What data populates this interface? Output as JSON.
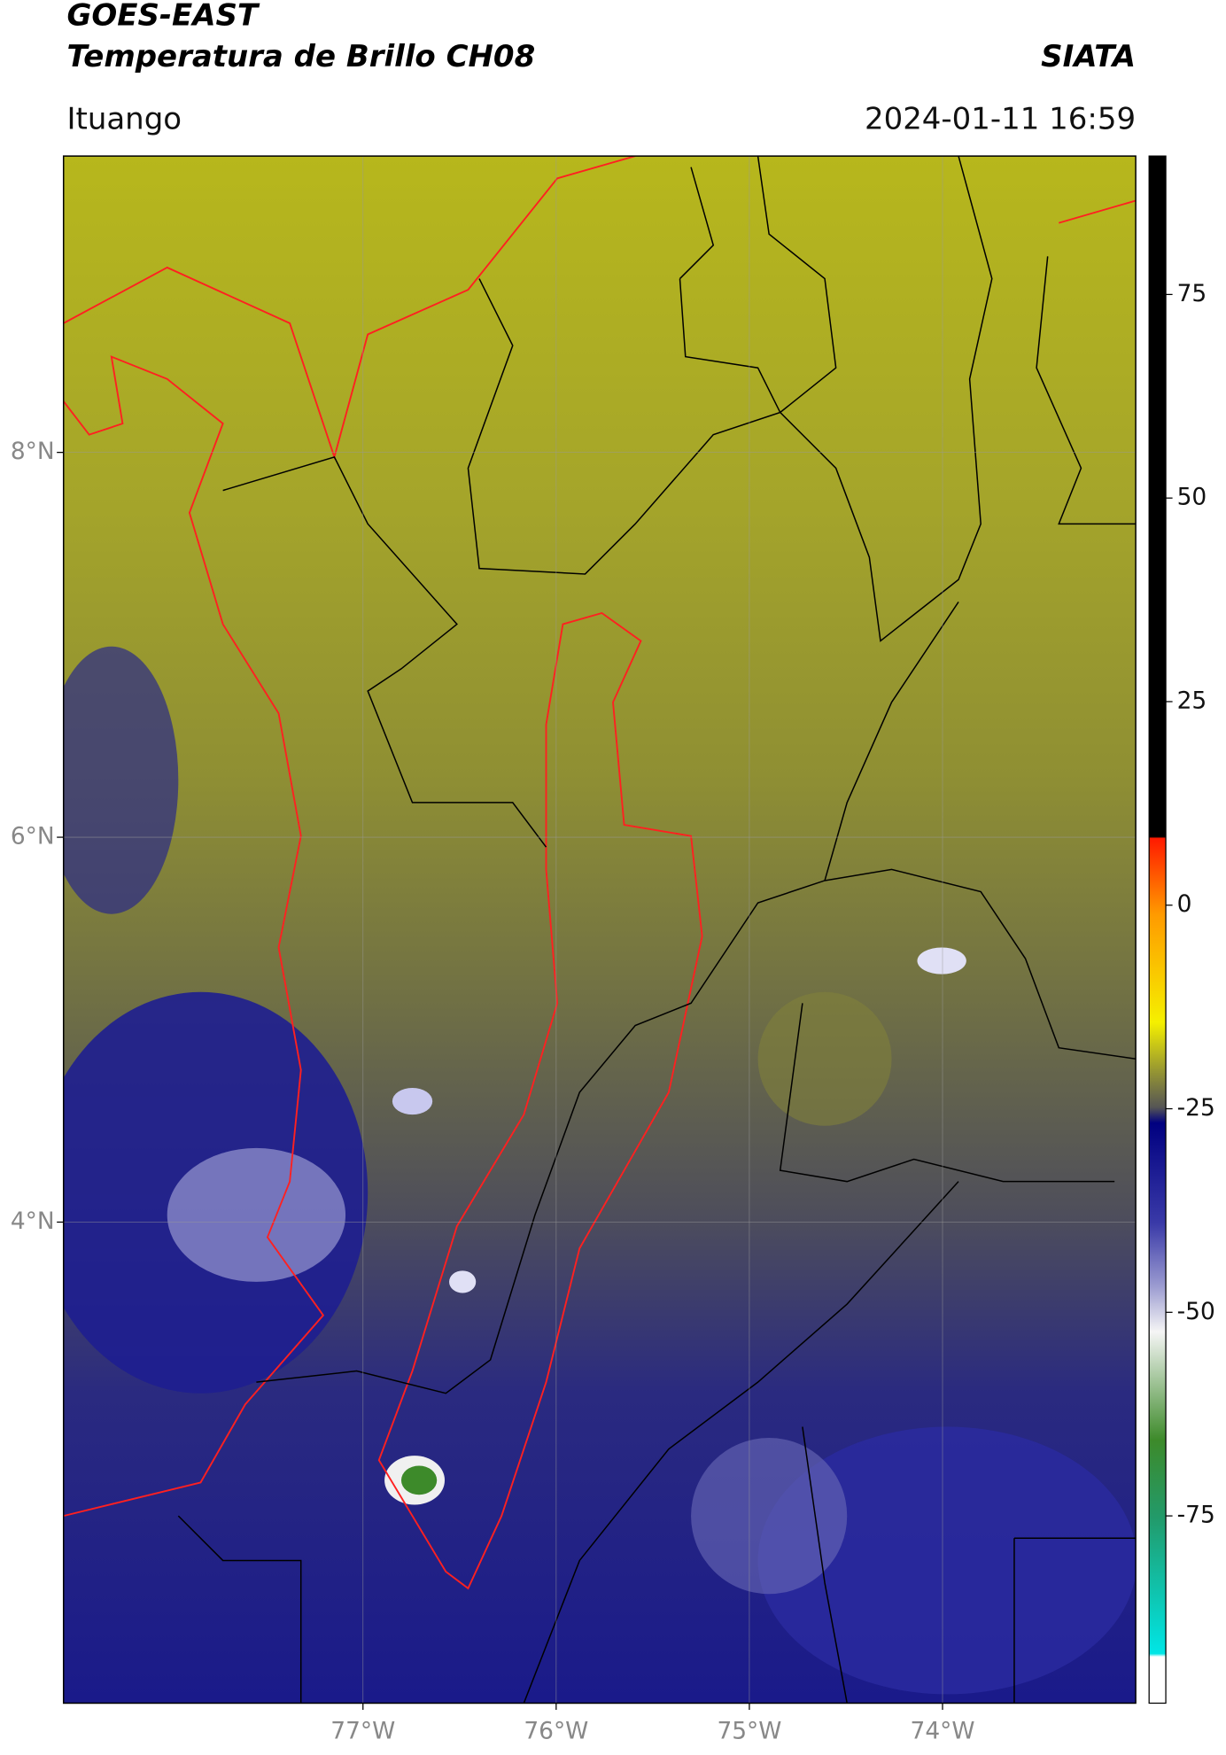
{
  "header": {
    "title": "GOES-EAST",
    "subtitle": "Temperatura de Brillo CH08",
    "org": "SIATA",
    "location": "Ituango",
    "datetime": "2024-01-11 16:59"
  },
  "map": {
    "lat_lim": [
      1.5,
      9.54
    ],
    "lon_lim": [
      -78.55,
      -73.0
    ],
    "lat_ticks": [
      {
        "value": 8,
        "label": "8°N"
      },
      {
        "value": 6,
        "label": "6°N"
      },
      {
        "value": 4,
        "label": "4°N"
      }
    ],
    "lon_ticks": [
      {
        "value": -77,
        "label": "77°W"
      },
      {
        "value": -76,
        "label": "76°W"
      },
      {
        "value": -75,
        "label": "75°W"
      },
      {
        "value": -74,
        "label": "74°W"
      }
    ]
  },
  "colorbar": {
    "lim": [
      -98,
      92
    ],
    "ticks": [
      75,
      50,
      25,
      0,
      -25,
      -50,
      -75
    ]
  }
}
